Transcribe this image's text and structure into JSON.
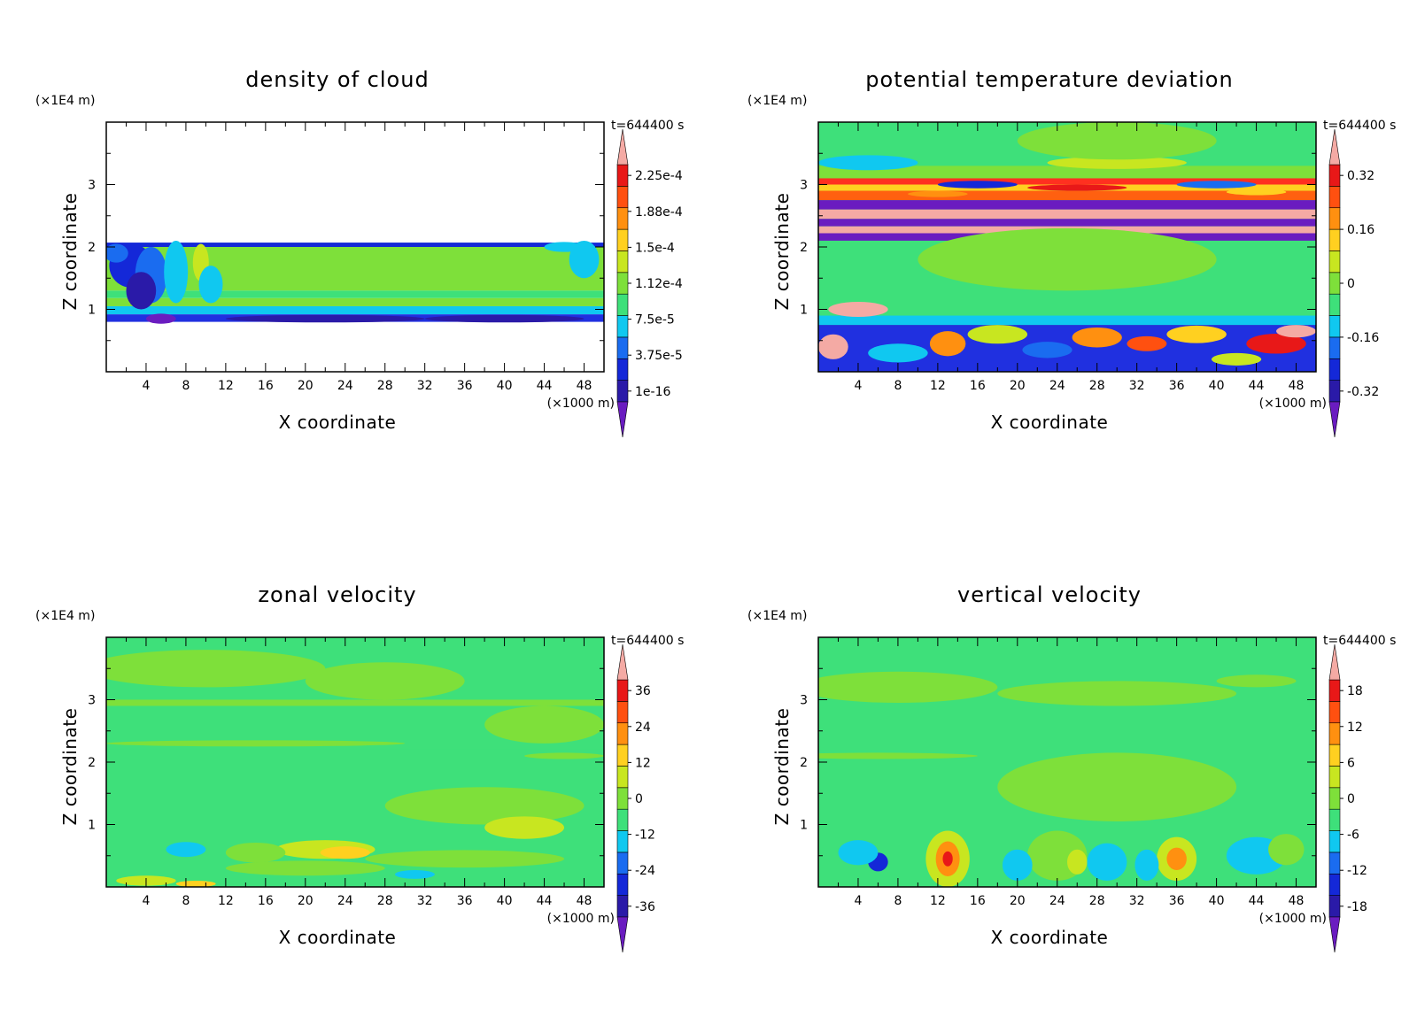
{
  "chart_data": [
    {
      "type": "heatmap",
      "title": "density of cloud",
      "xlabel": "X coordinate",
      "ylabel": "Z coordinate",
      "x_unit": "(×1000 m)",
      "y_unit": "(×1E4 m)",
      "time_label": "t=644400 s",
      "xlim": [
        0,
        50
      ],
      "ylim": [
        0,
        4
      ],
      "x_ticks": [
        4,
        8,
        12,
        16,
        20,
        24,
        28,
        32,
        36,
        40,
        44,
        48
      ],
      "y_ticks": [
        1,
        2,
        3
      ],
      "colorbar_labels": [
        "1e-16",
        "3.75e-5",
        "7.5e-5",
        "1.12e-4",
        "1.5e-4",
        "1.88e-4",
        "2.25e-4"
      ],
      "bands": [
        {
          "z": [
            2.0,
            2.07
          ],
          "color": "#1428d8"
        },
        {
          "z": [
            1.3,
            2.0
          ],
          "color": "#7ee03a"
        },
        {
          "z": [
            1.18,
            1.3
          ],
          "color": "#3ee07a"
        },
        {
          "z": [
            1.05,
            1.18
          ],
          "color": "#7ee03a"
        },
        {
          "z": [
            0.92,
            1.05
          ],
          "color": "#10c8f0"
        },
        {
          "z": [
            0.8,
            0.92
          ],
          "color": "#2030e0"
        }
      ]
    },
    {
      "type": "heatmap",
      "title": "potential temperature deviation",
      "xlabel": "X coordinate",
      "ylabel": "Z coordinate",
      "x_unit": "(×1000 m)",
      "y_unit": "(×1E4 m)",
      "time_label": "t=644400 s",
      "xlim": [
        0,
        50
      ],
      "ylim": [
        0,
        4
      ],
      "x_ticks": [
        4,
        8,
        12,
        16,
        20,
        24,
        28,
        32,
        36,
        40,
        44,
        48
      ],
      "y_ticks": [
        1,
        2,
        3
      ],
      "colorbar_labels": [
        "-0.32",
        "-0.16",
        "0",
        "0.16",
        "0.32"
      ],
      "bands": [
        {
          "z": [
            3.3,
            4.0
          ],
          "color": "#3ee07a"
        },
        {
          "z": [
            3.1,
            3.3
          ],
          "color": "#7ee03a"
        },
        {
          "z": [
            3.0,
            3.1
          ],
          "color": "#ff3020"
        },
        {
          "z": [
            2.9,
            3.0
          ],
          "color": "#ffd020"
        },
        {
          "z": [
            2.75,
            2.9
          ],
          "color": "#ff6010"
        },
        {
          "z": [
            2.6,
            2.75
          ],
          "color": "#6a1cc0"
        },
        {
          "z": [
            2.45,
            2.6
          ],
          "color": "#f4aaa4"
        },
        {
          "z": [
            2.33,
            2.45
          ],
          "color": "#6a1cc0"
        },
        {
          "z": [
            2.22,
            2.33
          ],
          "color": "#f4aaa4"
        },
        {
          "z": [
            2.1,
            2.22
          ],
          "color": "#6a1cc0"
        },
        {
          "z": [
            0.9,
            2.1
          ],
          "color": "#3ee07a"
        },
        {
          "z": [
            0.75,
            0.9
          ],
          "color": "#10c8f0"
        },
        {
          "z": [
            0.0,
            0.75
          ],
          "color": "#2030e0"
        }
      ]
    },
    {
      "type": "heatmap",
      "title": "zonal velocity",
      "xlabel": "X coordinate",
      "ylabel": "Z coordinate",
      "x_unit": "(×1000 m)",
      "y_unit": "(×1E4 m)",
      "time_label": "t=644400 s",
      "xlim": [
        0,
        50
      ],
      "ylim": [
        0,
        4
      ],
      "x_ticks": [
        4,
        8,
        12,
        16,
        20,
        24,
        28,
        32,
        36,
        40,
        44,
        48
      ],
      "y_ticks": [
        1,
        2,
        3
      ],
      "colorbar_labels": [
        "-36",
        "-24",
        "-12",
        "0",
        "12",
        "24",
        "36"
      ],
      "bands": [
        {
          "z": [
            3.0,
            4.0
          ],
          "color": "#3ee07a"
        },
        {
          "z": [
            2.9,
            3.0
          ],
          "color": "#7ee03a"
        },
        {
          "z": [
            2.2,
            2.9
          ],
          "color": "#3ee07a"
        },
        {
          "z": [
            0.0,
            2.2
          ],
          "color": "#3ee07a"
        }
      ]
    },
    {
      "type": "heatmap",
      "title": "vertical velocity",
      "xlabel": "X coordinate",
      "ylabel": "Z coordinate",
      "x_unit": "(×1000 m)",
      "y_unit": "(×1E4 m)",
      "time_label": "t=644400 s",
      "xlim": [
        0,
        50
      ],
      "ylim": [
        0,
        4
      ],
      "x_ticks": [
        4,
        8,
        12,
        16,
        20,
        24,
        28,
        32,
        36,
        40,
        44,
        48
      ],
      "y_ticks": [
        1,
        2,
        3
      ],
      "colorbar_labels": [
        "-18",
        "-12",
        "-6",
        "0",
        "6",
        "12",
        "18"
      ],
      "bands": [
        {
          "z": [
            0.0,
            4.0
          ],
          "color": "#3ee07a"
        }
      ]
    }
  ],
  "colors": {
    "palette": [
      "#6a1cc0",
      "#2a1aa8",
      "#1428d8",
      "#1a6cf0",
      "#10c8f0",
      "#3ee07a",
      "#7ee03a",
      "#c8e620",
      "#ffd020",
      "#ff9010",
      "#ff5010",
      "#e81818",
      "#f4aaa4"
    ]
  }
}
